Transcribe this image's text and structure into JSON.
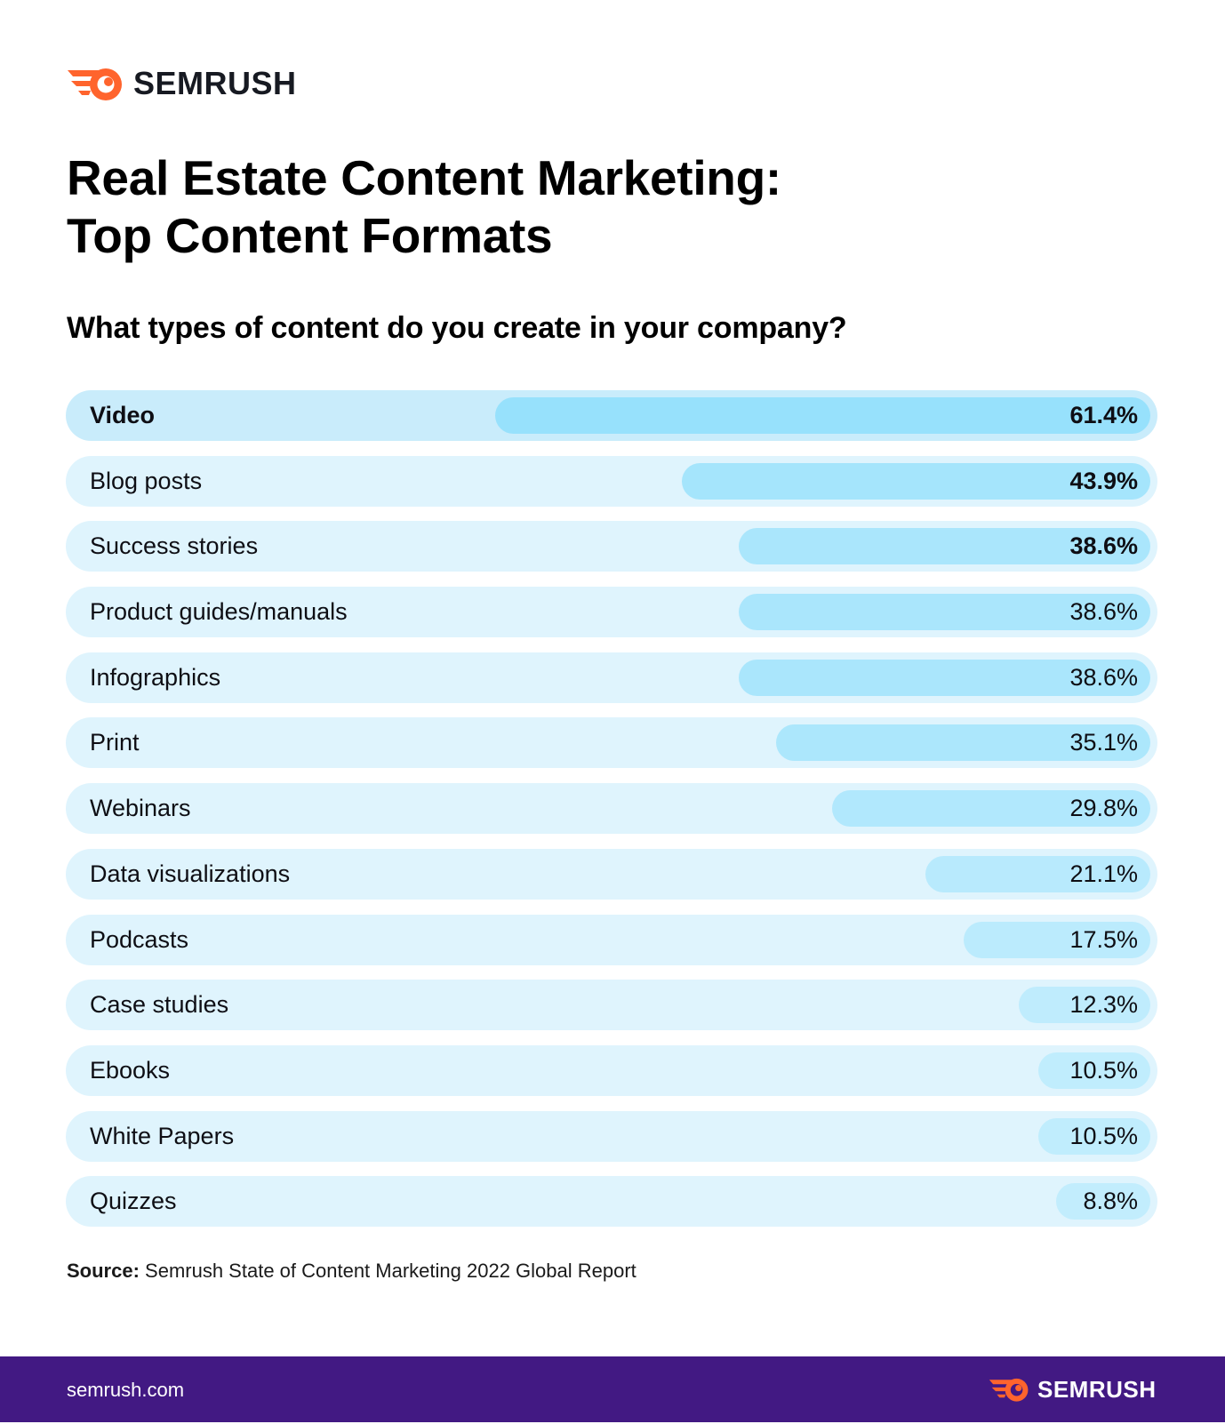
{
  "brand": {
    "name": "SEMRUSH",
    "logo_icon": "semrush-rocket-icon",
    "accent": "#ff642d"
  },
  "title_lines": [
    "Real Estate Content Marketing:",
    "Top Content Formats"
  ],
  "question": "What types of content do you create in your company?",
  "source": {
    "label": "Source:",
    "text": " Semrush State of Content Marketing 2022 Global Report"
  },
  "footer": {
    "url": "semrush.com",
    "background": "#421983"
  },
  "colors": {
    "track": "#dff4fd",
    "bar_light": "#c2edfd",
    "bar_dark": "#97e1fc"
  },
  "chart_data": {
    "type": "bar",
    "orientation": "horizontal",
    "categories": [
      "Video",
      "Blog posts",
      "Success stories",
      "Product guides/manuals",
      "Infographics",
      "Print",
      "Webinars",
      "Data visualizations",
      "Podcasts",
      "Case studies",
      "Ebooks",
      "White Papers",
      "Quizzes"
    ],
    "values": [
      61.4,
      43.9,
      38.6,
      38.6,
      38.6,
      35.1,
      29.8,
      21.1,
      17.5,
      12.3,
      10.5,
      10.5,
      8.8
    ],
    "value_labels": [
      "61.4%",
      "43.9%",
      "38.6%",
      "38.6%",
      "38.6%",
      "35.1%",
      "29.8%",
      "21.1%",
      "17.5%",
      "12.3%",
      "10.5%",
      "10.5%",
      "8.8%"
    ],
    "bold_labels": [
      true,
      false,
      false,
      false,
      false,
      false,
      false,
      false,
      false,
      false,
      false,
      false,
      false
    ],
    "bold_values": [
      true,
      true,
      true,
      false,
      false,
      false,
      false,
      false,
      false,
      false,
      false,
      false,
      false
    ],
    "unit": "%",
    "title": "What types of content do you create in your company?"
  }
}
